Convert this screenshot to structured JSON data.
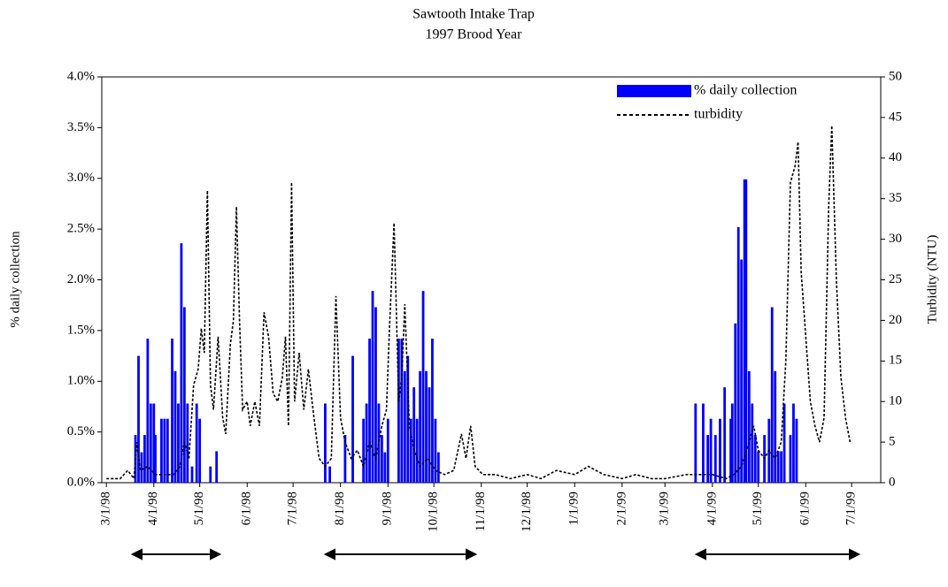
{
  "chart_data": {
    "type": "combo",
    "title": "Sawtooth Intake Trap",
    "subtitle": "1997 Brood Year",
    "y_label": "% daily collection",
    "y2_label": "Turbidity (NTU)",
    "legend": "upper right",
    "xlim": [
      "2/26/98",
      "7/20/99"
    ],
    "xticks": [
      "3/1/98",
      "4/1/98",
      "5/1/98",
      "6/1/98",
      "7/1/98",
      "8/1/98",
      "9/1/98",
      "10/1/98",
      "11/1/98",
      "12/1/98",
      "1/1/99",
      "2/1/99",
      "3/1/99",
      "4/1/99",
      "5/1/99",
      "6/1/99",
      "7/1/99"
    ],
    "ylim": [
      0,
      4
    ],
    "yticks": [
      {
        "value": 0,
        "label": "0.0%"
      },
      {
        "value": 0.5,
        "label": "0.5%"
      },
      {
        "value": 1,
        "label": "1.0%"
      },
      {
        "value": 1.5,
        "label": "1.5%"
      },
      {
        "value": 2,
        "label": "2.0%"
      },
      {
        "value": 2.5,
        "label": "2.5%"
      },
      {
        "value": 3,
        "label": "3.0%"
      },
      {
        "value": 3.5,
        "label": "3.5%"
      },
      {
        "value": 4,
        "label": "4.0%"
      }
    ],
    "y2lim": [
      0,
      50
    ],
    "y2ticks": [
      0,
      5,
      10,
      15,
      20,
      25,
      30,
      35,
      40,
      45,
      50
    ],
    "series": [
      {
        "name": "% daily collection",
        "type": "bar",
        "color": "#0000ff",
        "x": [
          "3/20/98",
          "3/22/98",
          "3/24/98",
          "3/26/98",
          "3/28/98",
          "3/30/98",
          "4/1/98",
          "4/2/98",
          "4/6/98",
          "4/8/98",
          "4/10/98",
          "4/13/98",
          "4/15/98",
          "4/17/98",
          "4/19/98",
          "4/21/98",
          "4/23/98",
          "4/26/98",
          "4/29/98",
          "5/1/98",
          "5/8/98",
          "5/12/98",
          "7/22/98",
          "7/25/98",
          "8/4/98",
          "8/9/98",
          "8/16/98",
          "8/18/98",
          "8/20/98",
          "8/22/98",
          "8/24/98",
          "8/26/98",
          "8/28/98",
          "8/30/98",
          "9/1/98",
          "9/8/98",
          "9/10/98",
          "9/12/98",
          "9/14/98",
          "9/16/98",
          "9/18/98",
          "9/20/98",
          "9/22/98",
          "9/24/98",
          "9/26/98",
          "9/28/98",
          "9/30/98",
          "10/2/98",
          "10/4/98",
          "3/21/99",
          "3/26/99",
          "3/29/99",
          "3/31/99",
          "4/3/99",
          "4/6/99",
          "4/9/99",
          "4/13/99",
          "4/14/99",
          "4/16/99",
          "4/18/99",
          "4/20/99",
          "4/22/99",
          "4/23/99",
          "4/25/99",
          "4/27/99",
          "4/29/99",
          "5/1/99",
          "5/5/99",
          "5/8/99",
          "5/10/99",
          "5/12/99",
          "5/14/99",
          "5/16/99",
          "5/18/99",
          "5/22/99",
          "5/24/99",
          "5/26/99"
        ],
        "values": [
          0.47,
          1.25,
          0.3,
          0.47,
          1.42,
          0.78,
          0.78,
          0.47,
          0.63,
          0.63,
          0.63,
          1.42,
          1.1,
          0.78,
          2.36,
          1.73,
          0.78,
          0.16,
          0.78,
          0.63,
          0.16,
          0.31,
          0.78,
          0.16,
          0.47,
          1.25,
          0.63,
          0.78,
          1.42,
          1.89,
          1.73,
          0.78,
          0.47,
          0.3,
          0.63,
          1.42,
          1.42,
          1.1,
          1.25,
          0.63,
          0.94,
          0.63,
          1.1,
          1.89,
          1.1,
          0.94,
          1.42,
          0.63,
          0.3,
          0.78,
          0.78,
          0.47,
          0.63,
          0.47,
          0.63,
          0.94,
          0.63,
          0.78,
          1.57,
          2.52,
          2.2,
          2.99,
          2.99,
          1.1,
          0.78,
          0.47,
          0.31,
          0.47,
          0.63,
          1.73,
          1.1,
          0.31,
          0.31,
          0.78,
          0.47,
          0.78,
          0.63
        ]
      },
      {
        "name": "turbidity",
        "type": "line",
        "color": "#000000",
        "dashed": true,
        "axis": "y2",
        "x": [
          "3/1/98",
          "3/10/98",
          "3/15/98",
          "3/19/98",
          "3/21/98",
          "3/23/98",
          "3/28/98",
          "4/2/98",
          "4/8/98",
          "4/14/98",
          "4/18/98",
          "4/21/98",
          "4/24/98",
          "4/27/98",
          "4/30/98",
          "5/2/98",
          "5/4/98",
          "5/6/98",
          "5/8/98",
          "5/10/98",
          "5/13/98",
          "5/16/98",
          "5/18/98",
          "5/21/98",
          "5/23/98",
          "5/25/98",
          "5/27/98",
          "5/29/98",
          "6/1/98",
          "6/3/98",
          "6/6/98",
          "6/9/98",
          "6/12/98",
          "6/15/98",
          "6/18/98",
          "6/21/98",
          "6/24/98",
          "6/26/98",
          "6/28/98",
          "6/30/98",
          "7/2/98",
          "7/5/98",
          "7/8/98",
          "7/11/98",
          "7/14/98",
          "7/18/98",
          "7/22/98",
          "7/26/98",
          "7/29/98",
          "8/1/98",
          "8/4/98",
          "8/8/98",
          "8/12/98",
          "8/16/98",
          "8/20/98",
          "8/24/98",
          "8/28/98",
          "8/31/98",
          "9/2/98",
          "9/5/98",
          "9/8/98",
          "9/10/98",
          "9/12/98",
          "9/15/98",
          "9/18/98",
          "9/22/98",
          "9/27/98",
          "10/2/98",
          "10/8/98",
          "10/14/98",
          "10/19/98",
          "10/22/98",
          "10/25/98",
          "10/28/98",
          "11/2/98",
          "11/10/98",
          "11/20/98",
          "12/1/98",
          "12/10/98",
          "12/20/98",
          "1/1/99",
          "1/10/99",
          "1/20/99",
          "2/1/99",
          "2/10/99",
          "2/20/99",
          "3/1/99",
          "3/15/99",
          "4/1/99",
          "4/10/99",
          "4/15/99",
          "4/20/99",
          "4/25/99",
          "4/28/99",
          "5/1/99",
          "5/5/99",
          "5/8/99",
          "5/12/99",
          "5/16/99",
          "5/19/99",
          "5/22/99",
          "5/25/99",
          "5/27/99",
          "5/29/99",
          "6/1/99",
          "6/4/99",
          "6/7/99",
          "6/10/99",
          "6/13/99",
          "6/16/99",
          "6/18/99",
          "6/21/99",
          "6/24/99",
          "6/27/99",
          "6/30/99"
        ],
        "values": [
          0.5,
          0.5,
          1.5,
          0.5,
          5,
          1.5,
          2,
          1,
          1,
          1,
          2,
          5,
          3,
          12,
          14,
          19,
          16,
          36,
          12,
          9,
          18,
          8,
          6,
          17,
          20,
          34,
          20,
          9,
          10,
          7,
          10,
          7,
          21,
          18,
          11,
          10,
          13,
          18,
          7,
          37,
          10,
          16,
          9,
          14,
          9,
          3,
          2,
          3,
          23,
          8,
          5,
          3,
          4,
          2,
          5,
          3,
          7,
          9,
          19,
          32,
          10,
          13,
          22,
          7,
          4,
          2,
          3,
          1.5,
          1,
          1.5,
          6,
          3,
          7,
          2,
          1,
          1,
          0.5,
          1,
          0.5,
          1.5,
          1,
          2,
          1,
          0.5,
          1,
          0.5,
          0.5,
          1,
          1,
          0.5,
          1,
          2,
          5,
          7,
          4,
          3,
          4,
          3,
          5,
          15,
          37,
          39,
          42,
          26,
          18,
          10,
          7,
          5,
          8,
          34,
          44,
          25,
          13,
          8,
          5
        ]
      }
    ]
  }
}
